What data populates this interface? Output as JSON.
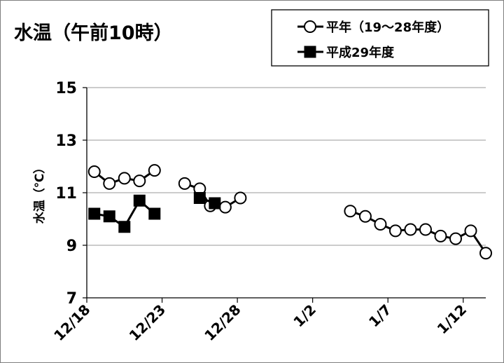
{
  "chart_data": {
    "type": "line",
    "title": "水温（午前10時）",
    "xlabel": "",
    "ylabel": "水温（℃）",
    "ylim": [
      7,
      15
    ],
    "yticks": [
      7,
      9,
      11,
      13,
      15
    ],
    "xticks": [
      {
        "day": 0,
        "label": "12/18"
      },
      {
        "day": 5,
        "label": "12/23"
      },
      {
        "day": 10,
        "label": "12/28"
      },
      {
        "day": 15,
        "label": "1/2"
      },
      {
        "day": 20,
        "label": "1/7"
      },
      {
        "day": 25,
        "label": "1/12"
      }
    ],
    "xlim": [
      0,
      26.5
    ],
    "grid": "horizontal",
    "legend_position": "top-right",
    "series": [
      {
        "name": "平年（19～28年度）",
        "marker": "open-circle",
        "color": "#000000",
        "segments": [
          [
            [
              0.5,
              11.8
            ],
            [
              1.5,
              11.35
            ],
            [
              2.5,
              11.55
            ],
            [
              3.5,
              11.45
            ],
            [
              4.5,
              11.85
            ]
          ],
          [
            [
              6.5,
              11.35
            ],
            [
              7.5,
              11.15
            ],
            [
              8.2,
              10.5
            ],
            [
              9.2,
              10.45
            ],
            [
              10.2,
              10.8
            ]
          ],
          [
            [
              17.5,
              10.3
            ],
            [
              18.5,
              10.1
            ],
            [
              19.5,
              9.8
            ],
            [
              20.5,
              9.55
            ],
            [
              21.5,
              9.6
            ],
            [
              22.5,
              9.6
            ],
            [
              23.5,
              9.35
            ],
            [
              24.5,
              9.25
            ],
            [
              25.5,
              9.55
            ],
            [
              26.5,
              8.7
            ]
          ]
        ]
      },
      {
        "name": "平成29年度",
        "marker": "filled-square",
        "color": "#000000",
        "segments": [
          [
            [
              0.5,
              10.2
            ],
            [
              1.5,
              10.1
            ],
            [
              2.5,
              9.7
            ],
            [
              3.5,
              10.7
            ],
            [
              4.5,
              10.2
            ]
          ],
          [
            [
              7.5,
              10.8
            ],
            [
              8.5,
              10.6
            ]
          ]
        ]
      }
    ]
  }
}
